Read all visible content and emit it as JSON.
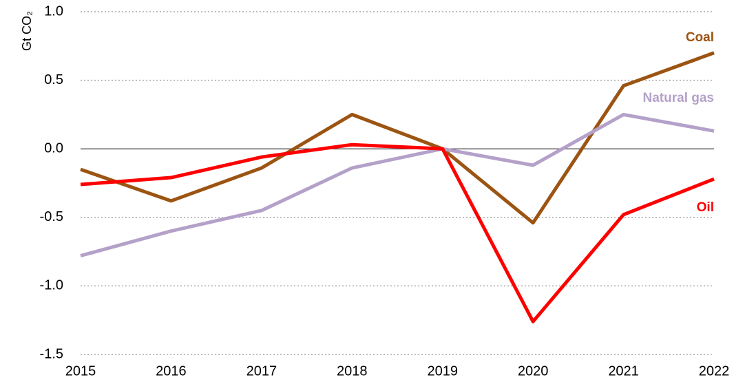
{
  "chart_data": {
    "type": "line",
    "y_label": "Gt CO₂",
    "x": [
      2015,
      2016,
      2017,
      2018,
      2019,
      2020,
      2021,
      2022
    ],
    "xlim": [
      2015,
      2022
    ],
    "ylim": [
      -1.5,
      1.0
    ],
    "yticks": [
      -1.5,
      {
        "value": -1.0,
        "label": "-1.0"
      },
      -0.5,
      {
        "value": 0.0,
        "label": "0.0"
      },
      0.5,
      {
        "value": 1.0,
        "label": "1.0"
      }
    ],
    "grid": true,
    "series": [
      {
        "name": "Coal",
        "color": "#9c5412",
        "values": [
          -0.15,
          -0.38,
          -0.14,
          0.25,
          0.0,
          -0.54,
          0.46,
          0.7
        ]
      },
      {
        "name": "Natural gas",
        "color": "#b4a1c9",
        "values": [
          -0.78,
          -0.6,
          -0.45,
          -0.14,
          0.0,
          -0.12,
          0.25,
          0.13
        ]
      },
      {
        "name": "Oil",
        "color": "#ff0000",
        "values": [
          -0.26,
          -0.21,
          -0.06,
          0.03,
          0.0,
          -1.26,
          -0.48,
          -0.22
        ]
      }
    ]
  }
}
